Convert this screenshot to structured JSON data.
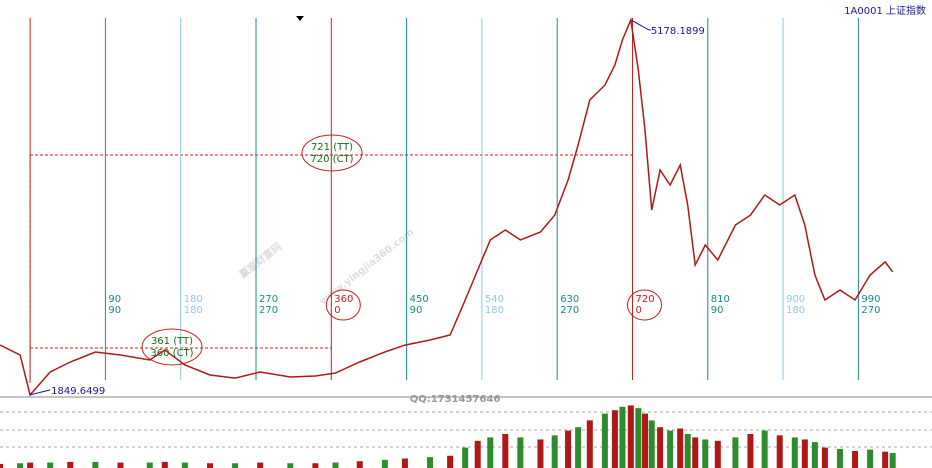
{
  "chart_data": {
    "type": "line",
    "header": "1A0001  上证指数",
    "xlim": [
      -36,
      1078
    ],
    "ylim": [
      1822,
      5355
    ],
    "color": "#b01818",
    "x": [
      -36,
      -12,
      0,
      24,
      48,
      78,
      108,
      143,
      161,
      185,
      215,
      245,
      275,
      311,
      341,
      365,
      394,
      424,
      448,
      478,
      502,
      520,
      535,
      550,
      568,
      586,
      610,
      627,
      643,
      655,
      669,
      687,
      699,
      708,
      718,
      727,
      735,
      743,
      753,
      765,
      777,
      786,
      795,
      807,
      822,
      843,
      861,
      878,
      896,
      914,
      926,
      938,
      950,
      968,
      986,
      1004,
      1022,
      1031
    ],
    "values": [
      2292,
      2204,
      1849.6499,
      2053,
      2142,
      2230,
      2204,
      2159,
      2248,
      2115,
      2026,
      1999,
      2053,
      2008,
      2017,
      2044,
      2142,
      2230,
      2292,
      2337,
      2381,
      2692,
      2958,
      3225,
      3313,
      3225,
      3296,
      3446,
      3757,
      4068,
      4467,
      4600,
      4778,
      5000,
      5178.1899,
      4734,
      4201,
      3491,
      3846,
      3713,
      3890,
      3535,
      3003,
      3180,
      3047,
      3358,
      3446,
      3624,
      3535,
      3624,
      3358,
      2914,
      2692,
      2781,
      2692,
      2914,
      3030,
      2941
    ],
    "volume_ylim": [
      0,
      100
    ],
    "volume": [
      6,
      7,
      8,
      8,
      9,
      9,
      8,
      8,
      9,
      8,
      7,
      7,
      8,
      7,
      7,
      8,
      10,
      12,
      14,
      16,
      18,
      30,
      40,
      45,
      50,
      45,
      42,
      48,
      55,
      60,
      70,
      80,
      85,
      90,
      92,
      88,
      80,
      70,
      60,
      55,
      58,
      50,
      45,
      42,
      40,
      45,
      50,
      55,
      48,
      45,
      42,
      38,
      30,
      28,
      25,
      27,
      24,
      22
    ],
    "volume_colors": [
      "#b01818",
      "#2e8b2e"
    ],
    "high_label": "5178.1899",
    "low_label": "1849.6499",
    "cycle_lines": [
      {
        "day": 0,
        "color": "#c81e1e"
      },
      {
        "day": 90,
        "color": "#1a8a8a",
        "labels": [
          90,
          90
        ]
      },
      {
        "day": 180,
        "color": "#8ecae6",
        "labels": [
          180,
          180
        ]
      },
      {
        "day": 270,
        "color": "#1a8a8a",
        "labels": [
          270,
          270
        ]
      },
      {
        "day": 360,
        "color": "#c81e1e",
        "labels": [
          360,
          0
        ]
      },
      {
        "day": 450,
        "color": "#1a8a8a",
        "labels": [
          450,
          90
        ]
      },
      {
        "day": 540,
        "color": "#8ecae6",
        "labels": [
          540,
          180
        ]
      },
      {
        "day": 630,
        "color": "#1a8a8a",
        "labels": [
          630,
          270
        ]
      },
      {
        "day": 720,
        "color": "#c81e1e",
        "labels": [
          720,
          0
        ]
      },
      {
        "day": 810,
        "color": "#1a8a8a",
        "labels": [
          810,
          90
        ]
      },
      {
        "day": 900,
        "color": "#8ecae6",
        "labels": [
          900,
          180
        ]
      },
      {
        "day": 990,
        "color": "#1a8a8a",
        "labels": [
          990,
          270
        ]
      }
    ],
    "annotations": [
      {
        "lines": [
          "721 (TT)",
          "720 (CT)"
        ]
      },
      {
        "lines": [
          "361 (TT)",
          "360 (CT)"
        ]
      }
    ],
    "watermarks": [
      "赢家财富网",
      "www.yingjia360.com",
      "QQ:1731457646"
    ]
  }
}
